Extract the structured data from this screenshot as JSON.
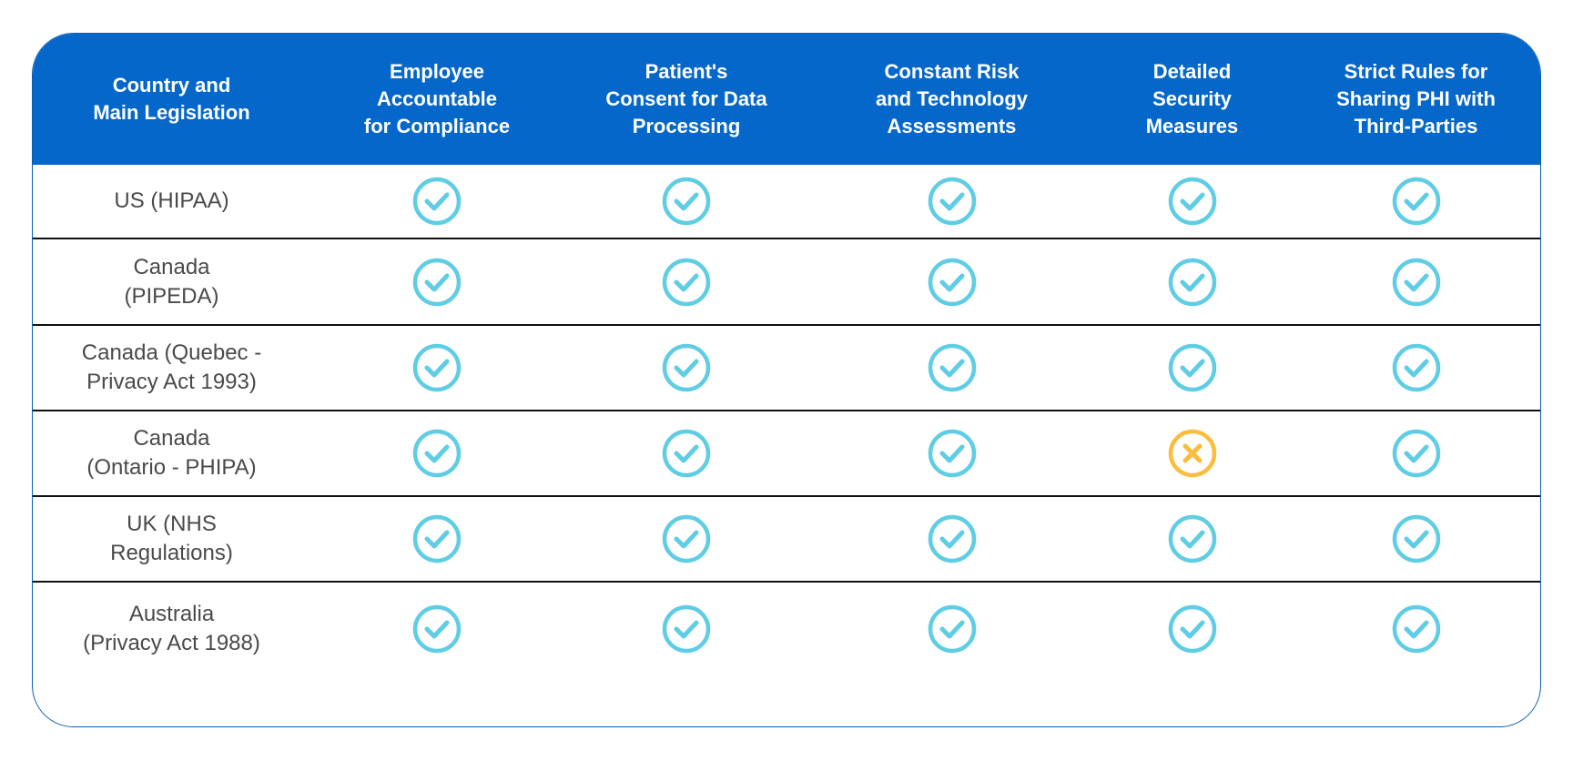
{
  "colors": {
    "header_bg": "#0567c9",
    "check": "#5fcde4",
    "cross": "#fbbd3b",
    "border": "#0a5fb4"
  },
  "columns": [
    "Country and\nMain Legislation",
    "Employee\nAccountable\nfor Compliance",
    "Patient's\nConsent for Data\nProcessing",
    "Constant Risk\nand Technology\nAssessments",
    "Detailed\nSecurity\nMeasures",
    "Strict Rules for\nSharing PHI with\nThird-Parties"
  ],
  "rows": [
    {
      "country": "US (HIPAA)",
      "marks": [
        "check",
        "check",
        "check",
        "check",
        "check"
      ]
    },
    {
      "country": "Canada\n(PIPEDA)",
      "marks": [
        "check",
        "check",
        "check",
        "check",
        "check"
      ]
    },
    {
      "country": "Canada (Quebec -\n Privacy Act 1993)",
      "marks": [
        "check",
        "check",
        "check",
        "check",
        "check"
      ]
    },
    {
      "country": "Canada\n(Ontario - PHIPA)",
      "marks": [
        "check",
        "check",
        "check",
        "cross",
        "check"
      ]
    },
    {
      "country": "UK (NHS\nRegulations)",
      "marks": [
        "check",
        "check",
        "check",
        "check",
        "check"
      ]
    },
    {
      "country": "Australia\n(Privacy Act 1988)",
      "marks": [
        "check",
        "check",
        "check",
        "check",
        "check"
      ]
    }
  ]
}
